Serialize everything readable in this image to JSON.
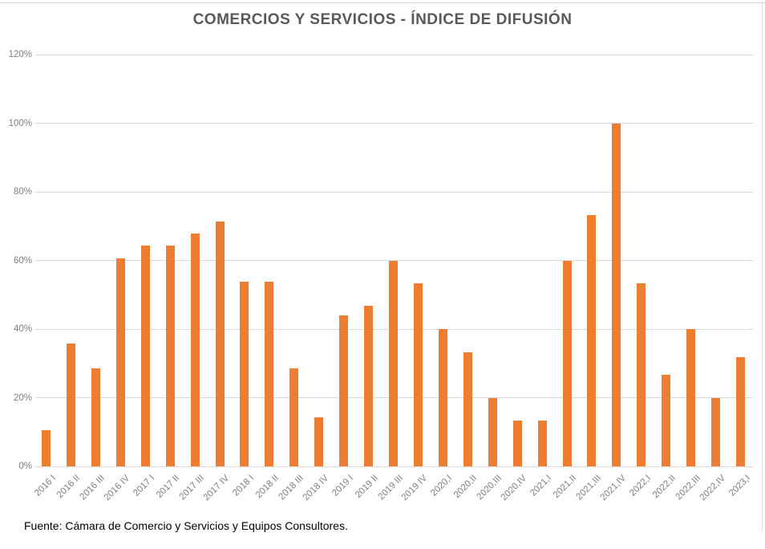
{
  "title": "COMERCIOS Y SERVICIOS - ÍNDICE DE DIFUSIÓN",
  "source_note": "Fuente: Cámara de Comercio y Servicios y Equipos Consultores.",
  "colors": {
    "bar": "#ed7d31",
    "gridline": "#d9d9d9",
    "axis_labels": "#7f7f7f",
    "title": "#595959",
    "frame_border": "#d9d9d9"
  },
  "chart_data": {
    "type": "bar",
    "title": "COMERCIOS Y SERVICIOS - ÍNDICE DE DIFUSIÓN",
    "categories": [
      "2016 I",
      "2016 II",
      "2016 III",
      "2016 IV",
      "2017 I",
      "2017 II",
      "2017 III",
      "2017 IV",
      "2018 I",
      "2018 II",
      "2018 III",
      "2018 IV",
      "2019 I",
      "2019 II",
      "2019 III",
      "2019 IV",
      "2020,I",
      "2020,II",
      "2020,III",
      "2020,IV",
      "2021,I",
      "2021,II",
      "2021,III",
      "2021,IV",
      "2022,I",
      "2022,II",
      "2022,III",
      "2022,IV",
      "2023,I"
    ],
    "values": [
      10.5,
      35.7,
      28.6,
      60.5,
      64.3,
      64.3,
      67.9,
      71.4,
      53.8,
      53.8,
      28.6,
      14.3,
      44.0,
      46.7,
      60.0,
      53.3,
      40.0,
      33.3,
      20.0,
      13.3,
      13.3,
      60.0,
      73.3,
      100.0,
      53.3,
      26.7,
      40.0,
      20.0,
      31.8
    ],
    "xlabel": "",
    "ylabel": "",
    "ylim": [
      0,
      120
    ],
    "ytick_step": 20,
    "ytick_labels": [
      "0%",
      "20%",
      "40%",
      "60%",
      "80%",
      "100%",
      "120%"
    ],
    "grid": true,
    "legend": false,
    "bar_color": "#ed7d31"
  }
}
